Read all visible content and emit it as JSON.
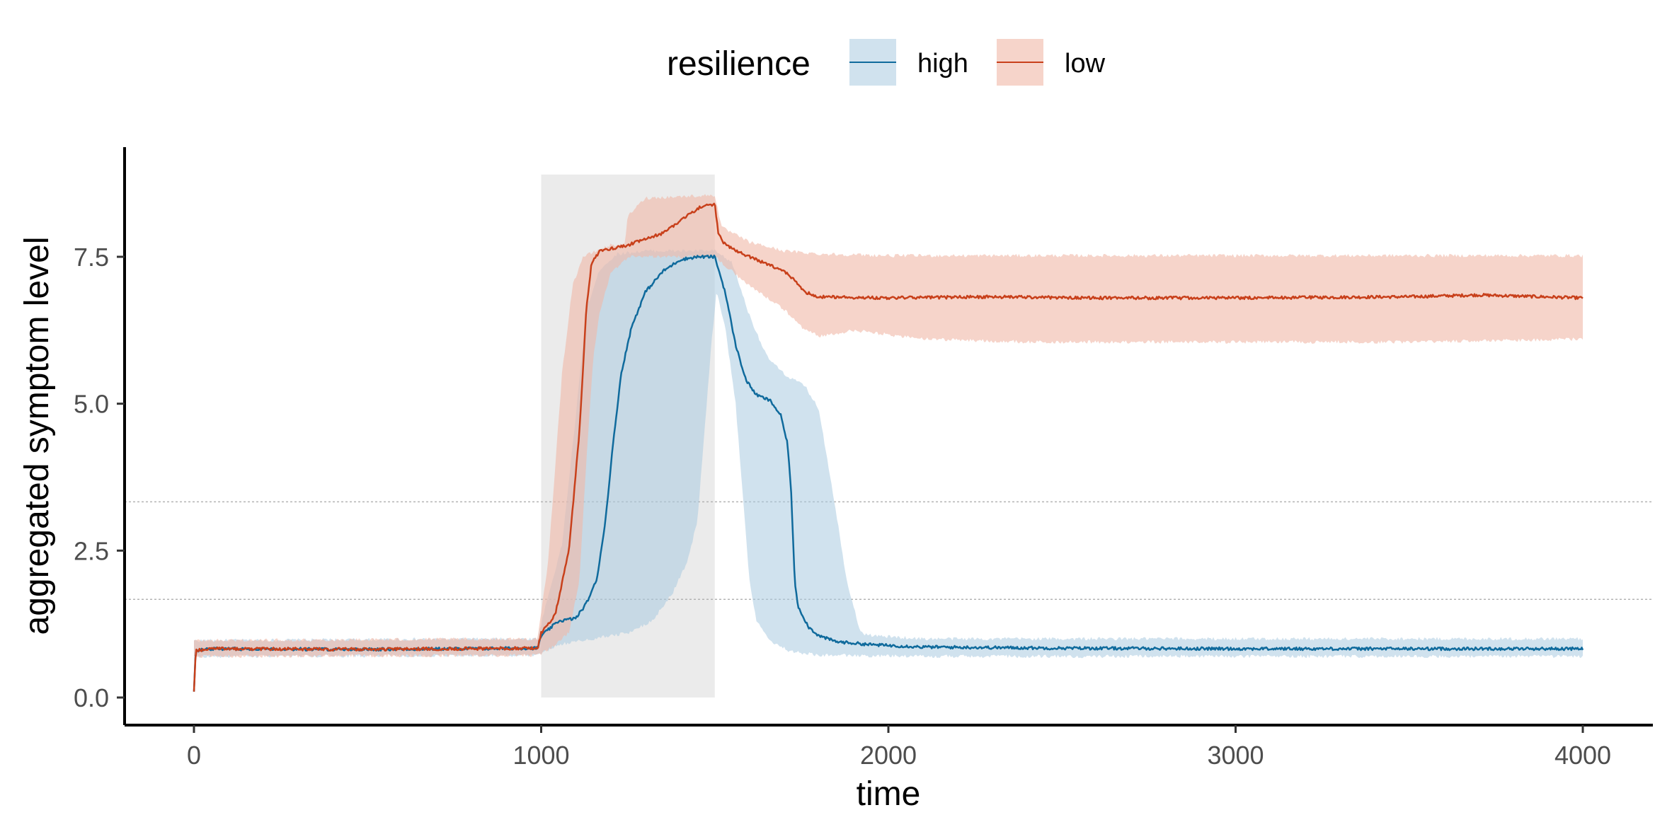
{
  "chart_data": {
    "type": "line",
    "xlabel": "time",
    "ylabel": "aggregated symptom level",
    "xlim": [
      -200,
      4200
    ],
    "ylim": [
      -0.45,
      9.25
    ],
    "x_ticks": [
      0,
      1000,
      2000,
      3000,
      4000
    ],
    "x_tick_labels": [
      "0",
      "1000",
      "2000",
      "3000",
      "4000"
    ],
    "y_ticks": [
      0,
      2.5,
      5,
      7.5
    ],
    "y_tick_labels": [
      "0.0",
      "2.5",
      "5.0",
      "7.5"
    ],
    "grid": false,
    "legend": {
      "title": "resilience",
      "placement": "top",
      "entries": [
        "high",
        "low"
      ]
    },
    "reference_lines_y": [
      1.67,
      3.33
    ],
    "shaded_interval": {
      "x": [
        1000,
        1500
      ],
      "y": [
        0,
        8.9
      ],
      "color": "#ebebeb"
    },
    "series": [
      {
        "name": "high",
        "color": "#0f6a9c",
        "ribbon_color": "#a9cbe0",
        "mean": [
          [
            0,
            0.1
          ],
          [
            5,
            0.8
          ],
          [
            50,
            0.83
          ],
          [
            500,
            0.82
          ],
          [
            990,
            0.84
          ],
          [
            1000,
            1.05
          ],
          [
            1050,
            1.3
          ],
          [
            1100,
            1.35
          ],
          [
            1130,
            1.6
          ],
          [
            1160,
            2.0
          ],
          [
            1185,
            3.0
          ],
          [
            1205,
            4.2
          ],
          [
            1230,
            5.5
          ],
          [
            1260,
            6.3
          ],
          [
            1300,
            6.9
          ],
          [
            1350,
            7.25
          ],
          [
            1400,
            7.45
          ],
          [
            1450,
            7.5
          ],
          [
            1500,
            7.5
          ],
          [
            1530,
            6.9
          ],
          [
            1560,
            6.0
          ],
          [
            1590,
            5.4
          ],
          [
            1620,
            5.15
          ],
          [
            1660,
            5.05
          ],
          [
            1690,
            4.8
          ],
          [
            1710,
            4.3
          ],
          [
            1720,
            3.5
          ],
          [
            1730,
            2.0
          ],
          [
            1740,
            1.55
          ],
          [
            1770,
            1.2
          ],
          [
            1800,
            1.05
          ],
          [
            1850,
            0.95
          ],
          [
            1950,
            0.9
          ],
          [
            2100,
            0.86
          ],
          [
            2500,
            0.84
          ],
          [
            3000,
            0.83
          ],
          [
            3500,
            0.83
          ],
          [
            4000,
            0.83
          ]
        ],
        "upper": [
          [
            0,
            0.97
          ],
          [
            990,
            1.0
          ],
          [
            1010,
            1.5
          ],
          [
            1060,
            2.6
          ],
          [
            1100,
            4.8
          ],
          [
            1130,
            6.6
          ],
          [
            1170,
            7.3
          ],
          [
            1220,
            7.55
          ],
          [
            1300,
            7.6
          ],
          [
            1500,
            7.6
          ],
          [
            1550,
            7.4
          ],
          [
            1600,
            6.5
          ],
          [
            1650,
            5.8
          ],
          [
            1700,
            5.5
          ],
          [
            1760,
            5.3
          ],
          [
            1800,
            4.9
          ],
          [
            1840,
            3.5
          ],
          [
            1880,
            2.0
          ],
          [
            1920,
            1.1
          ],
          [
            1960,
            1.05
          ],
          [
            2100,
            1.0
          ],
          [
            3000,
            1.0
          ],
          [
            4000,
            1.0
          ]
        ],
        "lower": [
          [
            0,
            0.7
          ],
          [
            990,
            0.72
          ],
          [
            1050,
            0.9
          ],
          [
            1150,
            1.0
          ],
          [
            1250,
            1.1
          ],
          [
            1320,
            1.3
          ],
          [
            1380,
            1.8
          ],
          [
            1420,
            2.3
          ],
          [
            1450,
            3.0
          ],
          [
            1470,
            4.5
          ],
          [
            1490,
            6.0
          ],
          [
            1505,
            6.9
          ],
          [
            1530,
            6.3
          ],
          [
            1560,
            5.0
          ],
          [
            1580,
            3.5
          ],
          [
            1600,
            2.0
          ],
          [
            1620,
            1.3
          ],
          [
            1660,
            0.95
          ],
          [
            1720,
            0.78
          ],
          [
            1800,
            0.72
          ],
          [
            2100,
            0.7
          ],
          [
            4000,
            0.7
          ]
        ]
      },
      {
        "name": "low",
        "color": "#c8401b",
        "ribbon_color": "#f0b8a7",
        "mean": [
          [
            0,
            0.1
          ],
          [
            5,
            0.8
          ],
          [
            50,
            0.83
          ],
          [
            500,
            0.82
          ],
          [
            990,
            0.84
          ],
          [
            1000,
            1.1
          ],
          [
            1040,
            1.4
          ],
          [
            1080,
            2.5
          ],
          [
            1110,
            4.5
          ],
          [
            1130,
            6.6
          ],
          [
            1145,
            7.4
          ],
          [
            1170,
            7.6
          ],
          [
            1250,
            7.7
          ],
          [
            1350,
            7.9
          ],
          [
            1420,
            8.2
          ],
          [
            1460,
            8.35
          ],
          [
            1500,
            8.4
          ],
          [
            1510,
            7.9
          ],
          [
            1530,
            7.7
          ],
          [
            1600,
            7.5
          ],
          [
            1700,
            7.25
          ],
          [
            1730,
            7.1
          ],
          [
            1760,
            6.9
          ],
          [
            1800,
            6.82
          ],
          [
            2000,
            6.8
          ],
          [
            2300,
            6.82
          ],
          [
            2600,
            6.8
          ],
          [
            3000,
            6.8
          ],
          [
            3500,
            6.82
          ],
          [
            3700,
            6.85
          ],
          [
            4000,
            6.8
          ]
        ],
        "upper": [
          [
            0,
            0.97
          ],
          [
            990,
            1.0
          ],
          [
            1020,
            2.3
          ],
          [
            1060,
            5.5
          ],
          [
            1090,
            7.0
          ],
          [
            1120,
            7.5
          ],
          [
            1200,
            7.7
          ],
          [
            1240,
            7.7
          ],
          [
            1250,
            8.2
          ],
          [
            1300,
            8.5
          ],
          [
            1500,
            8.55
          ],
          [
            1520,
            8.0
          ],
          [
            1600,
            7.75
          ],
          [
            1700,
            7.6
          ],
          [
            1800,
            7.55
          ],
          [
            2000,
            7.52
          ],
          [
            3000,
            7.52
          ],
          [
            4000,
            7.52
          ]
        ],
        "lower": [
          [
            0,
            0.7
          ],
          [
            990,
            0.72
          ],
          [
            1030,
            0.85
          ],
          [
            1080,
            1.1
          ],
          [
            1110,
            2.0
          ],
          [
            1130,
            4.0
          ],
          [
            1150,
            5.8
          ],
          [
            1170,
            6.6
          ],
          [
            1200,
            7.2
          ],
          [
            1250,
            7.5
          ],
          [
            1400,
            7.5
          ],
          [
            1500,
            7.5
          ],
          [
            1550,
            7.25
          ],
          [
            1600,
            7.0
          ],
          [
            1700,
            6.6
          ],
          [
            1750,
            6.3
          ],
          [
            1800,
            6.15
          ],
          [
            1900,
            6.25
          ],
          [
            2100,
            6.1
          ],
          [
            2400,
            6.05
          ],
          [
            2700,
            6.05
          ],
          [
            3000,
            6.05
          ],
          [
            3500,
            6.05
          ],
          [
            4000,
            6.1
          ]
        ]
      }
    ]
  }
}
